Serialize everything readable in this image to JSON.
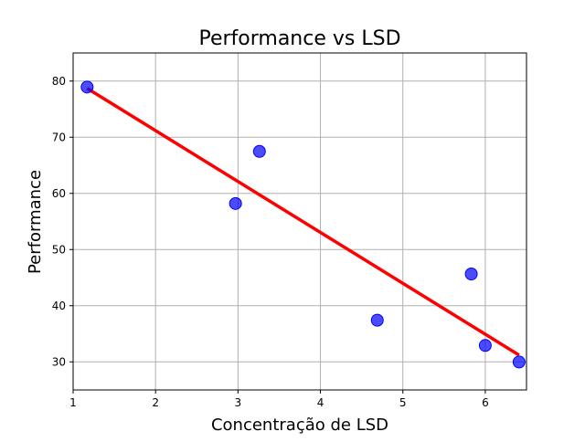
{
  "chart_data": {
    "type": "scatter",
    "title": "Performance vs LSD",
    "xlabel": "Concentração de LSD",
    "ylabel": "Performance",
    "xlim": [
      1.0,
      6.5
    ],
    "ylim": [
      25,
      85
    ],
    "xticks": [
      1,
      2,
      3,
      4,
      5,
      6
    ],
    "yticks": [
      30,
      40,
      50,
      60,
      70,
      80
    ],
    "grid": true,
    "points": [
      {
        "x": 1.17,
        "y": 78.93
      },
      {
        "x": 2.97,
        "y": 58.2
      },
      {
        "x": 3.26,
        "y": 67.47
      },
      {
        "x": 4.69,
        "y": 37.42
      },
      {
        "x": 5.83,
        "y": 45.65
      },
      {
        "x": 6.0,
        "y": 32.92
      },
      {
        "x": 6.41,
        "y": 29.97
      }
    ],
    "fit_line": {
      "x": [
        1.17,
        6.41
      ],
      "y": [
        78.7,
        31.2
      ]
    },
    "colors": {
      "points": "#0000ff",
      "line": "#ff0000",
      "grid": "#b0b0b0"
    }
  }
}
